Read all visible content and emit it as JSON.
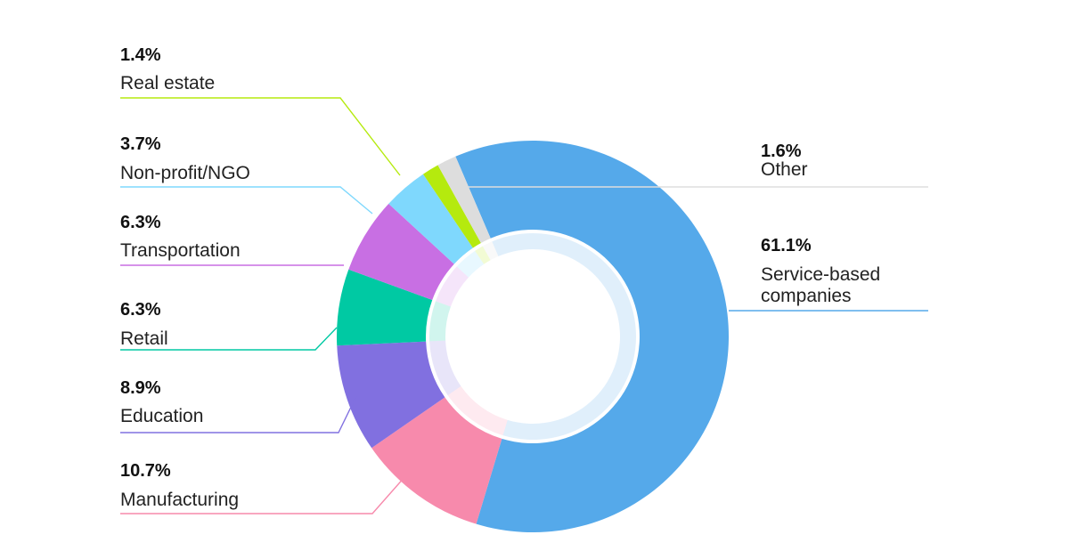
{
  "chart_data": {
    "type": "pie",
    "donut": true,
    "unit": "%",
    "categories": [
      "Service-based companies",
      "Manufacturing",
      "Education",
      "Retail",
      "Transportation",
      "Non-profit/NGO",
      "Real estate",
      "Other"
    ],
    "display_labels": [
      "Service-based\ncompanies",
      "Manufacturing",
      "Education",
      "Retail",
      "Transportation",
      "Non-profit/NGO",
      "Real estate",
      "Other"
    ],
    "values": [
      61.1,
      10.7,
      8.9,
      6.3,
      6.3,
      3.7,
      1.4,
      1.6
    ],
    "value_labels": [
      "61.1%",
      "10.7%",
      "8.9%",
      "6.3%",
      "6.3%",
      "3.7%",
      "1.4%",
      "1.6%"
    ],
    "colors": [
      "#55a9ea",
      "#f78aac",
      "#8170e0",
      "#00c9a3",
      "#c86fe3",
      "#7fd8fd",
      "#b5ea0e",
      "#dddddd"
    ],
    "legend": "callout labels"
  }
}
